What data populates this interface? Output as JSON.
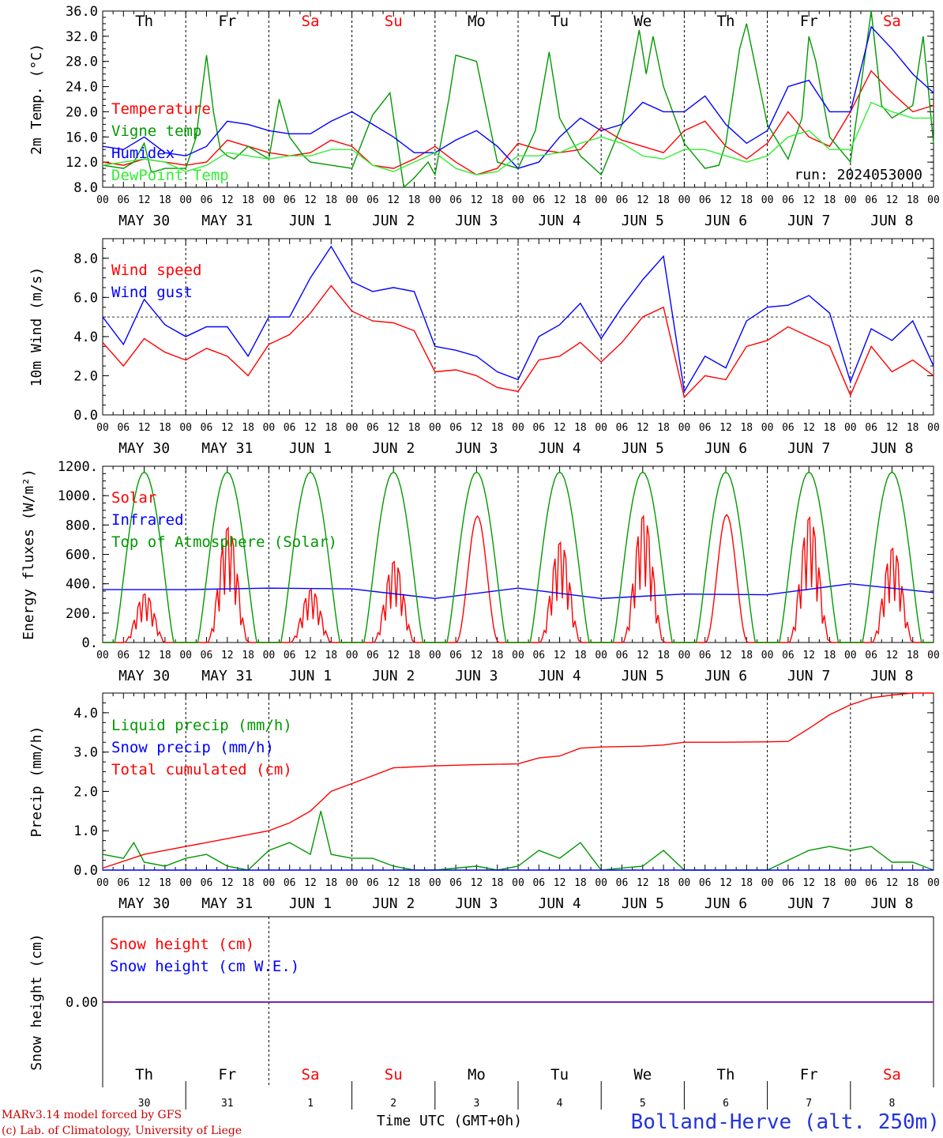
{
  "colors": {
    "red": "#ff0000",
    "green": "#009900",
    "blue": "#0000ff",
    "lightgreen": "#33ee33",
    "darkred": "#cc0000",
    "text": "#000000",
    "purple": "#7a1f9e"
  },
  "days": {
    "names": [
      "Th",
      "Fr",
      "Sa",
      "Su",
      "Mo",
      "Tu",
      "We",
      "Th",
      "Fr",
      "Sa"
    ],
    "weekend": [
      false,
      false,
      true,
      true,
      false,
      false,
      false,
      false,
      false,
      true
    ],
    "dates": [
      "MAY 30",
      "MAY 31",
      "JUN  1",
      "JUN  2",
      "JUN  3",
      "JUN  4",
      "JUN  5",
      "JUN  6",
      "JUN  7",
      "JUN  8"
    ],
    "numbers": [
      "30",
      "31",
      "1",
      "2",
      "3",
      "4",
      "5",
      "6",
      "7",
      "8"
    ],
    "hours": [
      "00",
      "06",
      "12",
      "18"
    ],
    "end_hour": "00"
  },
  "run_label": "run: 2024053000",
  "footer": {
    "model": "MARv3.14 model forced by GFS",
    "copyright": "(c) Lab. of Climatology, University of Liege",
    "xaxis": "Time UTC (GMT+0h)",
    "station": "Bolland-Herve (alt. 250m)"
  },
  "chart_data": [
    {
      "type": "line",
      "ylabel": "2m Temp. (°C)",
      "ylim": [
        8,
        36
      ],
      "yticks": [
        "8.0",
        "12.0",
        "16.0",
        "20.0",
        "24.0",
        "28.0",
        "32.0",
        "36.0"
      ],
      "ytick_values": [
        8,
        12,
        16,
        20,
        24,
        28,
        32,
        36
      ],
      "x_unit": "hours since MAY 30 00 UTC",
      "series": [
        {
          "name": "Temperature",
          "color": "#ff0000",
          "x": [
            0,
            6,
            12,
            18,
            24,
            30,
            36,
            42,
            48,
            54,
            60,
            66,
            72,
            78,
            84,
            90,
            96,
            102,
            108,
            114,
            120,
            126,
            132,
            138,
            144,
            150,
            156,
            162,
            168,
            174,
            180,
            186,
            192,
            198,
            204,
            210,
            216,
            222,
            228,
            234,
            240
          ],
          "y": [
            12,
            11.5,
            12.5,
            12,
            11.5,
            12,
            15.5,
            14.5,
            13.5,
            13,
            13.5,
            15.5,
            14.5,
            11.5,
            11,
            12.5,
            14.5,
            12,
            10,
            11,
            15,
            14,
            13.5,
            14,
            17.5,
            15.5,
            14.5,
            13.5,
            17,
            18.5,
            14.5,
            12.5,
            15,
            20,
            16,
            14.5,
            20,
            26.5,
            23,
            20,
            21
          ]
        },
        {
          "name": "Vigne temp",
          "color": "#009900",
          "x": [
            0,
            6,
            9,
            12,
            14,
            15,
            18,
            24,
            27,
            30,
            32,
            34,
            36,
            38,
            42,
            48,
            51,
            54,
            58,
            60,
            66,
            72,
            78,
            83,
            87,
            90,
            94,
            96,
            100,
            102,
            108,
            114,
            120,
            125,
            129,
            132,
            138,
            144,
            150,
            155,
            157,
            159,
            162,
            168,
            174,
            178,
            180,
            184,
            186,
            192,
            198,
            202,
            204,
            206,
            210,
            216,
            222,
            225,
            228,
            234,
            237,
            240
          ],
          "y": [
            11.5,
            11,
            12,
            15,
            10.5,
            10.5,
            11,
            11,
            16,
            29,
            20,
            14,
            13,
            12.5,
            14.5,
            12.5,
            22,
            16,
            13,
            12,
            11.5,
            11,
            19.5,
            23,
            8,
            9.5,
            12,
            10,
            22,
            29,
            28,
            12,
            11,
            17,
            29.5,
            19,
            13,
            10,
            18,
            33,
            26,
            32,
            24,
            15,
            11,
            11.5,
            15,
            30,
            34,
            18,
            12.5,
            19,
            32,
            28,
            16,
            12,
            37,
            21,
            19,
            21,
            32,
            15
          ]
        },
        {
          "name": "Humidex",
          "color": "#0000ff",
          "x": [
            0,
            6,
            12,
            18,
            24,
            30,
            36,
            42,
            48,
            54,
            60,
            66,
            72,
            78,
            84,
            90,
            96,
            102,
            108,
            114,
            120,
            126,
            132,
            138,
            144,
            150,
            156,
            162,
            168,
            174,
            180,
            186,
            192,
            198,
            204,
            210,
            216,
            222,
            228,
            234,
            240
          ],
          "y": [
            14.5,
            14,
            16,
            13.5,
            13,
            14.5,
            18.5,
            18,
            17,
            16.5,
            16.5,
            18.5,
            20,
            18,
            16,
            13.5,
            13.5,
            15.5,
            17,
            14.5,
            11,
            12,
            16,
            19,
            17,
            18,
            21.5,
            20,
            20,
            22.5,
            18,
            15,
            17,
            24,
            25,
            20,
            20,
            33.5,
            30,
            26,
            23
          ]
        },
        {
          "name": "DewPoint Temp",
          "color": "#33ee33",
          "x": [
            0,
            6,
            12,
            18,
            24,
            30,
            36,
            42,
            48,
            54,
            60,
            66,
            72,
            78,
            84,
            90,
            96,
            102,
            108,
            114,
            120,
            126,
            132,
            138,
            144,
            150,
            156,
            162,
            168,
            174,
            180,
            186,
            192,
            198,
            204,
            210,
            216,
            222,
            228,
            234,
            240
          ],
          "y": [
            11.5,
            12,
            12.5,
            12,
            10.5,
            11.5,
            13.5,
            13,
            12.5,
            13,
            13,
            14,
            14,
            11.5,
            10.5,
            12,
            13.5,
            11,
            10,
            10.5,
            13,
            13,
            13.5,
            15,
            16,
            15,
            13,
            12.5,
            14,
            14,
            13,
            12,
            13,
            16,
            17,
            14,
            14,
            21.5,
            20,
            19,
            19
          ]
        }
      ]
    },
    {
      "type": "line",
      "ylabel": "10m Wind (m/s)",
      "ylim": [
        0,
        9
      ],
      "yticks": [
        "0.0",
        "2.0",
        "4.0",
        "6.0",
        "8.0"
      ],
      "ytick_values": [
        0,
        2,
        4,
        6,
        8
      ],
      "reference_line": 5,
      "series": [
        {
          "name": "Wind speed",
          "color": "#ff0000",
          "x": [
            0,
            6,
            12,
            18,
            24,
            30,
            36,
            42,
            48,
            54,
            60,
            66,
            72,
            78,
            84,
            90,
            96,
            102,
            108,
            114,
            120,
            126,
            132,
            138,
            144,
            150,
            156,
            162,
            168,
            174,
            180,
            186,
            192,
            198,
            204,
            210,
            216,
            222,
            228,
            234,
            240
          ],
          "y": [
            3.7,
            2.5,
            3.9,
            3.2,
            2.8,
            3.4,
            3.0,
            2.0,
            3.6,
            4.1,
            5.2,
            6.6,
            5.3,
            4.8,
            4.7,
            4.3,
            2.2,
            2.3,
            2.0,
            1.4,
            1.2,
            2.8,
            3.0,
            3.7,
            2.7,
            3.7,
            5.0,
            5.5,
            0.9,
            2.0,
            1.8,
            3.5,
            3.8,
            4.5,
            4.0,
            3.5,
            1.0,
            3.5,
            2.2,
            2.8,
            2.0
          ]
        },
        {
          "name": "Wind gust",
          "color": "#0000ff",
          "x": [
            0,
            6,
            12,
            18,
            24,
            30,
            36,
            42,
            48,
            54,
            60,
            66,
            72,
            78,
            84,
            90,
            96,
            102,
            108,
            114,
            120,
            126,
            132,
            138,
            144,
            150,
            156,
            162,
            168,
            174,
            180,
            186,
            192,
            198,
            204,
            210,
            216,
            222,
            228,
            234,
            240
          ],
          "y": [
            5.0,
            3.6,
            5.9,
            4.6,
            4.0,
            4.5,
            4.5,
            3.0,
            5.0,
            5.0,
            7.0,
            8.6,
            6.8,
            6.3,
            6.5,
            6.3,
            3.5,
            3.3,
            3.0,
            2.2,
            1.8,
            4.0,
            4.6,
            5.7,
            3.9,
            5.5,
            6.9,
            8.1,
            1.2,
            3.0,
            2.4,
            4.8,
            5.5,
            5.6,
            6.1,
            5.2,
            1.7,
            4.4,
            3.8,
            4.8,
            2.5
          ]
        }
      ]
    },
    {
      "type": "line",
      "ylabel": "Energy fluxes (W/m²)",
      "ylim": [
        0,
        1200
      ],
      "yticks": [
        "0.",
        "200.",
        "400.",
        "600.",
        "800.",
        "1000.",
        "1200."
      ],
      "ytick_values": [
        0,
        200,
        400,
        600,
        800,
        1000,
        1200
      ],
      "series": [
        {
          "name": "Solar",
          "color": "#ff0000",
          "daily_peak": [
            330,
            780,
            360,
            550,
            860,
            680,
            860,
            870,
            850,
            640
          ]
        },
        {
          "name": "Infrared",
          "color": "#0000ff",
          "x": [
            0,
            24,
            48,
            72,
            96,
            120,
            144,
            168,
            192,
            216,
            240
          ],
          "y": [
            360,
            360,
            370,
            365,
            300,
            370,
            300,
            330,
            325,
            400,
            340
          ]
        },
        {
          "name": "Top of Atmosphere (Solar)",
          "color": "#009900",
          "daily_peak": [
            1160,
            1160,
            1160,
            1160,
            1160,
            1160,
            1160,
            1160,
            1160,
            1160
          ]
        }
      ]
    },
    {
      "type": "line",
      "ylabel": "Precip (mm/h)",
      "ylim": [
        0,
        4.5
      ],
      "yticks": [
        "0.0",
        "1.0",
        "2.0",
        "3.0",
        "4.0"
      ],
      "ytick_values": [
        0,
        1,
        2,
        3,
        4
      ],
      "series": [
        {
          "name": "Liquid precip (mm/h)",
          "color": "#009900",
          "x": [
            0,
            6,
            9,
            12,
            18,
            24,
            30,
            36,
            42,
            48,
            54,
            60,
            63,
            66,
            72,
            78,
            84,
            90,
            96,
            108,
            114,
            120,
            126,
            132,
            138,
            144,
            156,
            162,
            168,
            180,
            192,
            204,
            210,
            216,
            222,
            228,
            234,
            240
          ],
          "y": [
            0.4,
            0.3,
            0.7,
            0.2,
            0.1,
            0.3,
            0.4,
            0.1,
            0.0,
            0.5,
            0.7,
            0.4,
            1.5,
            0.4,
            0.3,
            0.3,
            0.1,
            0.0,
            0.0,
            0.1,
            0.0,
            0.1,
            0.5,
            0.3,
            0.7,
            0.0,
            0.1,
            0.5,
            0.0,
            0.0,
            0.0,
            0.5,
            0.6,
            0.5,
            0.6,
            0.2,
            0.2,
            0.0
          ]
        },
        {
          "name": "Snow precip (mm/h)",
          "color": "#0000ff",
          "x": [
            0,
            240
          ],
          "y": [
            0,
            0
          ]
        },
        {
          "name": "Total cumulated (cm)",
          "color": "#ff0000",
          "x": [
            0,
            12,
            24,
            36,
            48,
            54,
            60,
            66,
            72,
            84,
            96,
            108,
            120,
            126,
            132,
            138,
            144,
            156,
            162,
            168,
            180,
            192,
            198,
            204,
            210,
            216,
            222,
            228,
            234,
            240
          ],
          "y": [
            0.05,
            0.4,
            0.6,
            0.8,
            1.0,
            1.2,
            1.5,
            2.0,
            2.2,
            2.6,
            2.65,
            2.68,
            2.7,
            2.85,
            2.9,
            3.1,
            3.13,
            3.15,
            3.18,
            3.25,
            3.25,
            3.26,
            3.27,
            3.6,
            3.95,
            4.2,
            4.38,
            4.45,
            4.5,
            4.5
          ]
        }
      ]
    },
    {
      "type": "line",
      "ylabel": "Snow height (cm)",
      "ylim": [
        -1,
        1
      ],
      "yticks": [
        "0.00"
      ],
      "ytick_values": [
        0
      ],
      "series": [
        {
          "name": "Snow height (cm)",
          "color": "#ff0000",
          "x": [
            0,
            240
          ],
          "y": [
            0,
            0
          ]
        },
        {
          "name": "Snow height (cm W.E.)",
          "color": "#0000ff",
          "x": [
            0,
            240
          ],
          "y": [
            0,
            0
          ]
        }
      ]
    }
  ]
}
